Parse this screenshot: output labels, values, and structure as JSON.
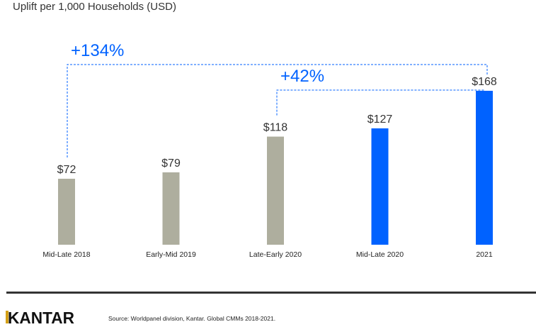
{
  "chart_data": {
    "type": "bar",
    "title": "Uplift per 1,000 Households (USD)",
    "categories": [
      "Mid-Late 2018",
      "Early-Mid 2019",
      "Late-Early 2020",
      "Mid-Late 2020",
      "2021"
    ],
    "values": [
      72,
      79,
      118,
      127,
      168
    ],
    "data_labels": [
      "$72",
      "$79",
      "$118",
      "$127",
      "$168"
    ],
    "bar_colors": [
      "#aeae9e",
      "#aeae9e",
      "#aeae9e",
      "#0062ff",
      "#0062ff"
    ],
    "ylim": [
      0,
      168
    ],
    "grid": false,
    "annotations": [
      {
        "label": "+134%",
        "from": "Mid-Late 2018",
        "to": "2021"
      },
      {
        "label": "+42%",
        "from": "Late-Early 2020",
        "to": "2021"
      }
    ],
    "annotation_color": "#0062ff"
  },
  "footer": {
    "brand": "KANTAR",
    "source": "Source: Worldpanel division, Kantar. Global CMMs 2018-2021."
  }
}
